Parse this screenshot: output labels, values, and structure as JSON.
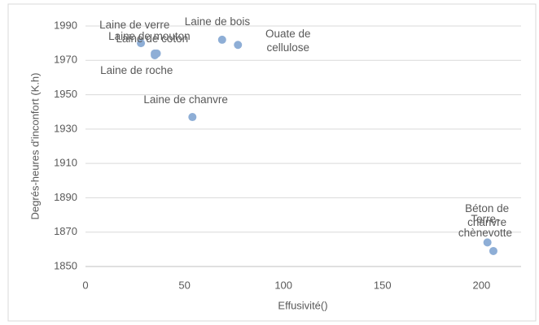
{
  "chart_data": {
    "type": "scatter",
    "x_label": "Effusivité()",
    "y_label": "Degrés-heures d'inconfort (K.h)",
    "point_labels": [
      "Laine de verre",
      "Laine de mouton",
      "Laine de coton",
      "Laine de roche",
      "Laine de bois",
      "Ouate de cellulose",
      "Laine de chanvre",
      "Béton de chanvre",
      "Terre-chènevotte"
    ],
    "x": [
      28,
      35,
      36,
      35,
      69,
      77,
      54,
      203,
      206
    ],
    "values": [
      1980,
      1974,
      1974,
      1973,
      1982,
      1979,
      1937,
      1864,
      1859
    ],
    "color": "#8eaed6",
    "xlim": [
      0,
      220
    ],
    "xticks": [
      0,
      50,
      100,
      150,
      200
    ],
    "ylim": [
      1850,
      1990
    ],
    "yticks": [
      1850,
      1870,
      1890,
      1910,
      1930,
      1950,
      1970,
      1990
    ],
    "grid": true
  }
}
